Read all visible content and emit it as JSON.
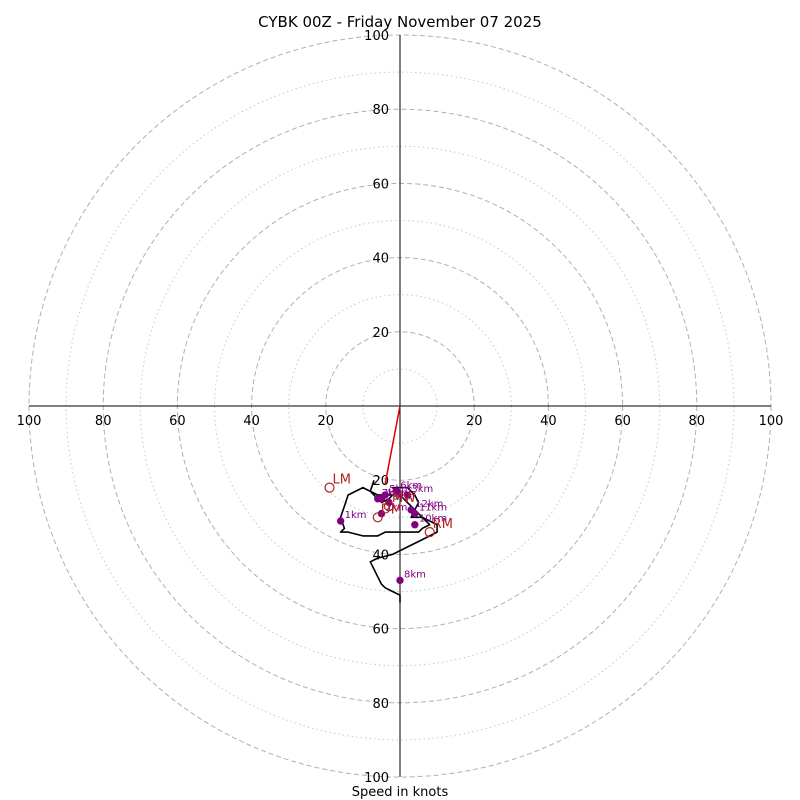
{
  "chart_data": {
    "type": "hodograph",
    "title": "CYBK 00Z - Friday November 07 2025",
    "xlabel": "Speed in knots",
    "axis_range": [
      -100,
      100
    ],
    "tick_labels": {
      "x_left": [
        "100",
        "80",
        "60",
        "40",
        "20"
      ],
      "x_right": [
        "20",
        "40",
        "60",
        "80",
        "100"
      ],
      "y_top": [
        "100",
        "80",
        "60",
        "40",
        "20"
      ],
      "y_bottom": [
        "20",
        "40",
        "60",
        "80",
        "100"
      ]
    },
    "tick_values": [
      20,
      40,
      60,
      80,
      100
    ],
    "ring_dashed": [
      20,
      40,
      60,
      80,
      100
    ],
    "ring_dotted": [
      10,
      30,
      50,
      70,
      90
    ],
    "colors": {
      "trace": "#000000",
      "storm_vector": "#dd0000",
      "height_marker": "#800080",
      "motion_marker": "#b22222",
      "ring": "#b0b0b0",
      "axis": "#000000"
    },
    "hodograph_trace": [
      [
        -7,
        -20
      ],
      [
        -8,
        -23
      ],
      [
        -6,
        -25
      ],
      [
        -4,
        -24
      ],
      [
        -5,
        -26
      ],
      [
        -3,
        -25
      ],
      [
        -2,
        -24
      ],
      [
        -6,
        -24
      ],
      [
        -10,
        -22
      ],
      [
        -14,
        -24
      ],
      [
        -15,
        -27
      ],
      [
        -16,
        -30
      ],
      [
        -15,
        -33
      ],
      [
        -16,
        -34
      ],
      [
        -14,
        -34
      ],
      [
        -10,
        -35
      ],
      [
        -6,
        -35
      ],
      [
        -4,
        -34
      ],
      [
        -2,
        -34
      ],
      [
        2,
        -34
      ],
      [
        5,
        -34
      ],
      [
        6,
        -33
      ],
      [
        8,
        -32
      ],
      [
        6,
        -30
      ],
      [
        4,
        -28
      ],
      [
        2,
        -26
      ],
      [
        0,
        -24
      ],
      [
        -2,
        -22
      ],
      [
        2,
        -22
      ],
      [
        4,
        -24
      ],
      [
        5,
        -26
      ],
      [
        4,
        -28
      ],
      [
        3,
        -30
      ],
      [
        6,
        -30
      ],
      [
        8,
        -31
      ],
      [
        10,
        -32
      ],
      [
        10,
        -34
      ],
      [
        6,
        -36
      ],
      [
        2,
        -38
      ],
      [
        -2,
        -40
      ],
      [
        -6,
        -41
      ],
      [
        -8,
        -42
      ],
      [
        -7,
        -44
      ],
      [
        -6,
        -46
      ],
      [
        -5,
        -48
      ],
      [
        -4,
        -49
      ],
      [
        -2,
        -50
      ],
      [
        0,
        -51
      ],
      [
        0,
        -53
      ]
    ],
    "height_markers": [
      {
        "label": "1km",
        "u": -16,
        "v": -31
      },
      {
        "label": "2km",
        "u": -5,
        "v": -29
      },
      {
        "label": "3km",
        "u": 2,
        "v": -24
      },
      {
        "label": "4km",
        "u": -5,
        "v": -25
      },
      {
        "label": "5km",
        "u": -4,
        "v": -24
      },
      {
        "label": "6km",
        "u": -1,
        "v": -23
      },
      {
        "label": "7km",
        "u": -6,
        "v": -25
      },
      {
        "label": "8km",
        "u": 0,
        "v": -47
      },
      {
        "label": "9km",
        "u": -3,
        "v": -26
      },
      {
        "label": "10km",
        "u": 4,
        "v": -32
      },
      {
        "label": "11km",
        "u": 4,
        "v": -29
      },
      {
        "label": "12km",
        "u": 3,
        "v": -28
      }
    ],
    "motion_markers": [
      {
        "label": "LM",
        "u": -19,
        "v": -22
      },
      {
        "label": "RM",
        "u": 8,
        "v": -34
      },
      {
        "label": "DM",
        "u": -6,
        "v": -30
      },
      {
        "label": "MW",
        "u": -3,
        "v": -27
      }
    ],
    "storm_vector": {
      "from": [
        0,
        0
      ],
      "to": [
        -4,
        -21
      ]
    }
  }
}
